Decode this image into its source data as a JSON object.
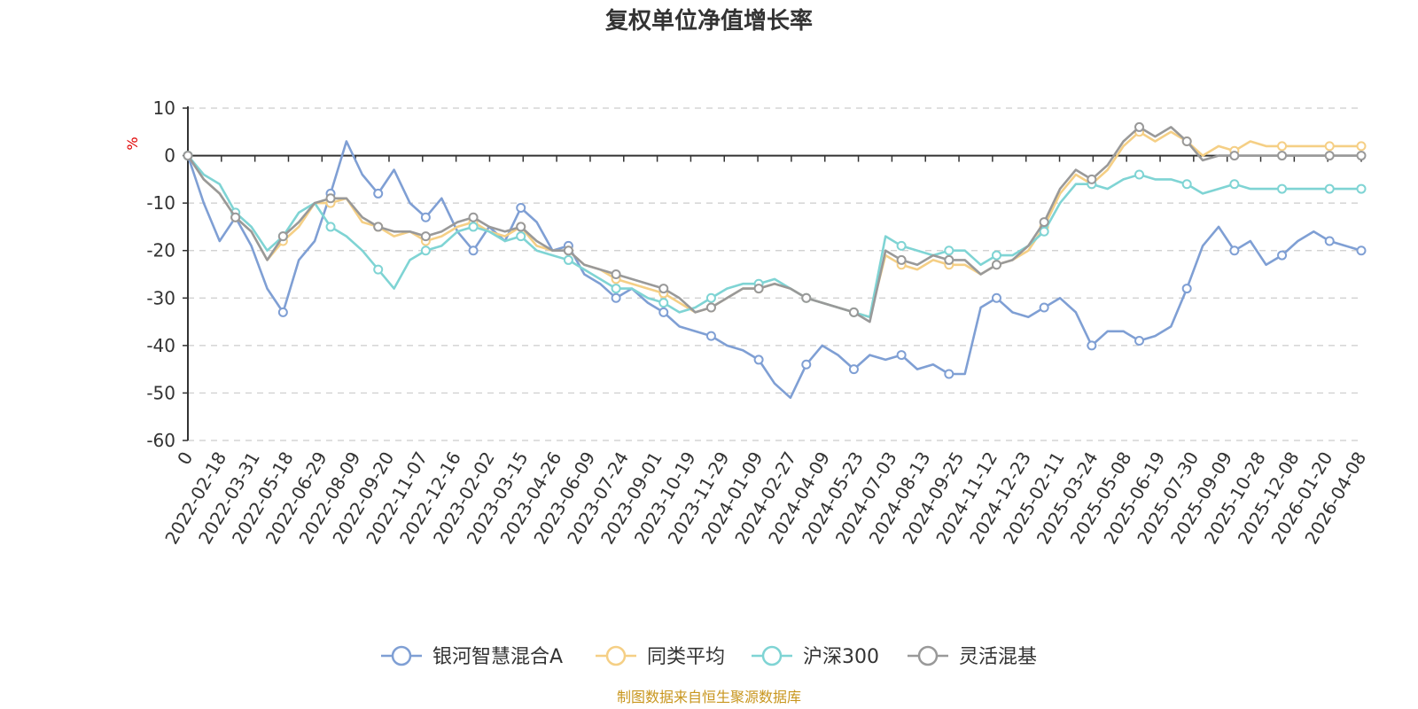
{
  "chart_data": {
    "type": "line",
    "title": "复权单位净值增长率",
    "ylabel": "%",
    "ylim": [
      -60,
      10
    ],
    "yticks": [
      "10",
      "0",
      "-10",
      "-20",
      "-30",
      "-40",
      "-50",
      "-60"
    ],
    "xticks": [
      "0",
      "2022-02-18",
      "2022-03-31",
      "2022-05-18",
      "2022-06-29",
      "2022-08-09",
      "2022-09-20",
      "2022-11-07",
      "2022-12-16",
      "2023-02-02",
      "2023-03-15",
      "2023-04-26",
      "2023-06-09",
      "2023-07-24",
      "2023-09-01",
      "2023-10-19",
      "2023-11-29",
      "2024-01-09",
      "2024-02-27",
      "2024-04-09",
      "2024-05-23",
      "2024-07-03",
      "2024-08-13",
      "2024-09-25",
      "2024-11-12",
      "2024-12-23",
      "2025-02-11",
      "2025-03-24",
      "2025-05-08",
      "2025-06-19",
      "2025-07-30",
      "2025-09-09",
      "2025-10-28",
      "2025-12-08",
      "2026-01-20",
      "2026-04-08"
    ],
    "grid": true,
    "legend_position": "bottom",
    "series": [
      {
        "name": "银河智慧混合A",
        "color": "#7f9fd4",
        "values": [
          0,
          -10,
          -18,
          -13,
          -19,
          -28,
          -33,
          -22,
          -18,
          -8,
          3,
          -4,
          -8,
          -3,
          -10,
          -13,
          -9,
          -16,
          -20,
          -15,
          -18,
          -11,
          -14,
          -20,
          -19,
          -25,
          -27,
          -30,
          -28,
          -31,
          -33,
          -36,
          -37,
          -38,
          -40,
          -41,
          -43,
          -48,
          -51,
          -44,
          -40,
          -42,
          -45,
          -42,
          -43,
          -42,
          -45,
          -44,
          -46,
          -46,
          -32,
          -30,
          -33,
          -34,
          -32,
          -30,
          -33,
          -40,
          -37,
          -37,
          -39,
          -38,
          -36,
          -28,
          -19,
          -15,
          -20,
          -18,
          -23,
          -21,
          -18,
          -16,
          -18,
          -19,
          -20
        ]
      },
      {
        "name": "同类平均",
        "color": "#f5cf85",
        "values": [
          0,
          -5,
          -8,
          -13,
          -16,
          -22,
          -18,
          -15,
          -10,
          -10,
          -9,
          -14,
          -15,
          -17,
          -16,
          -18,
          -17,
          -15,
          -14,
          -16,
          -17,
          -15,
          -19,
          -20,
          -20,
          -23,
          -24,
          -26,
          -27,
          -28,
          -29,
          -31,
          -33,
          -32,
          -30,
          -28,
          -28,
          -27,
          -28,
          -30,
          -31,
          -32,
          -33,
          -34,
          -21,
          -23,
          -24,
          -22,
          -23,
          -23,
          -25,
          -23,
          -22,
          -20,
          -15,
          -8,
          -4,
          -6,
          -3,
          2,
          5,
          3,
          5,
          3,
          0,
          2,
          1,
          3,
          2,
          2,
          2,
          2,
          2,
          2,
          2
        ]
      },
      {
        "name": "沪深300",
        "color": "#7fd4d4",
        "values": [
          0,
          -4,
          -6,
          -12,
          -15,
          -20,
          -17,
          -12,
          -10,
          -15,
          -17,
          -20,
          -24,
          -28,
          -22,
          -20,
          -19,
          -16,
          -15,
          -16,
          -18,
          -17,
          -20,
          -21,
          -22,
          -24,
          -26,
          -28,
          -28,
          -30,
          -31,
          -33,
          -32,
          -30,
          -28,
          -27,
          -27,
          -26,
          -28,
          -30,
          -31,
          -32,
          -33,
          -34,
          -17,
          -19,
          -20,
          -21,
          -20,
          -20,
          -23,
          -21,
          -21,
          -19,
          -16,
          -10,
          -6,
          -6,
          -7,
          -5,
          -4,
          -5,
          -5,
          -6,
          -8,
          -7,
          -6,
          -7,
          -7,
          -7,
          -7,
          -7,
          -7,
          -7,
          -7
        ]
      },
      {
        "name": "灵活混基",
        "color": "#999999",
        "values": [
          0,
          -5,
          -8,
          -13,
          -16,
          -22,
          -17,
          -14,
          -10,
          -9,
          -9,
          -13,
          -15,
          -16,
          -16,
          -17,
          -16,
          -14,
          -13,
          -15,
          -16,
          -15,
          -18,
          -20,
          -20,
          -23,
          -24,
          -25,
          -26,
          -27,
          -28,
          -30,
          -33,
          -32,
          -30,
          -28,
          -28,
          -27,
          -28,
          -30,
          -31,
          -32,
          -33,
          -35,
          -20,
          -22,
          -23,
          -21,
          -22,
          -22,
          -25,
          -23,
          -22,
          -19,
          -14,
          -7,
          -3,
          -5,
          -2,
          3,
          6,
          4,
          6,
          3,
          -1,
          0,
          0,
          0,
          0,
          0,
          0,
          0,
          0,
          0,
          0
        ]
      }
    ]
  },
  "footer": {
    "source": "制图数据来自恒生聚源数据库"
  }
}
